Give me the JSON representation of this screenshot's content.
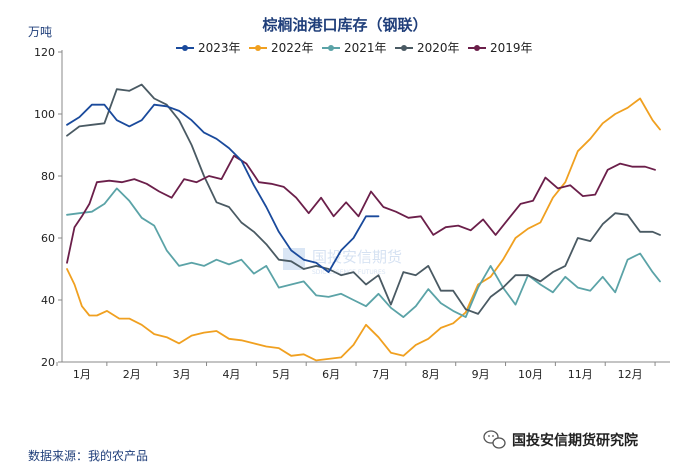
{
  "chart_data": {
    "type": "line",
    "title": "棕榈油港口库存（钢联）",
    "ylabel": "万吨",
    "xlabel": "",
    "ylim": [
      20,
      120
    ],
    "yticks": [
      20,
      40,
      60,
      80,
      100,
      120
    ],
    "xlim": [
      0.6,
      12.8
    ],
    "categories": [
      "1月",
      "2月",
      "3月",
      "4月",
      "5月",
      "6月",
      "7月",
      "8月",
      "9月",
      "10月",
      "11月",
      "12月"
    ],
    "legend_position": "top",
    "grid": false,
    "series": [
      {
        "name": "2023年",
        "color": "#1a4a9c",
        "x": [
          0.7,
          0.95,
          1.2,
          1.45,
          1.7,
          1.95,
          2.2,
          2.45,
          2.7,
          2.95,
          3.2,
          3.45,
          3.7,
          3.95,
          4.2,
          4.45,
          4.7,
          4.95,
          5.2,
          5.45,
          5.7,
          5.95,
          6.2,
          6.45,
          6.7,
          6.95
        ],
        "y": [
          96.5,
          99,
          103,
          103,
          98,
          96,
          98,
          103,
          102.5,
          101,
          98,
          94,
          92,
          89,
          85,
          77,
          70,
          62,
          56,
          53,
          52,
          49,
          56,
          60,
          67,
          67
        ]
      },
      {
        "name": "2022年",
        "color": "#f0a020",
        "x": [
          0.7,
          0.85,
          1.0,
          1.15,
          1.3,
          1.5,
          1.75,
          1.95,
          2.2,
          2.45,
          2.7,
          2.95,
          3.2,
          3.45,
          3.7,
          3.95,
          4.2,
          4.45,
          4.7,
          4.95,
          5.2,
          5.45,
          5.7,
          5.95,
          6.2,
          6.45,
          6.7,
          6.95,
          7.2,
          7.45,
          7.7,
          7.95,
          8.2,
          8.45,
          8.7,
          8.95,
          9.2,
          9.45,
          9.7,
          9.95,
          10.2,
          10.45,
          10.7,
          10.95,
          11.2,
          11.45,
          11.7,
          11.95,
          12.2,
          12.45,
          12.6
        ],
        "y": [
          50,
          45,
          38,
          35,
          35,
          36.5,
          34,
          34,
          32,
          29,
          28,
          26,
          28.5,
          29.5,
          30,
          27.5,
          27,
          26,
          25,
          24.5,
          22,
          22.5,
          20.5,
          21,
          21.5,
          25.5,
          32,
          28,
          23,
          22,
          25.5,
          27.5,
          31,
          32.5,
          36,
          45,
          47.5,
          53,
          60,
          63,
          65,
          73,
          78,
          88,
          92,
          97,
          100,
          102,
          105,
          98,
          95
        ]
      },
      {
        "name": "2021年",
        "color": "#5ba3a7",
        "x": [
          0.7,
          0.95,
          1.2,
          1.45,
          1.7,
          1.95,
          2.2,
          2.45,
          2.7,
          2.95,
          3.2,
          3.45,
          3.7,
          3.95,
          4.2,
          4.45,
          4.7,
          4.95,
          5.2,
          5.45,
          5.7,
          5.95,
          6.2,
          6.45,
          6.7,
          6.95,
          7.2,
          7.45,
          7.7,
          7.95,
          8.2,
          8.45,
          8.7,
          8.95,
          9.2,
          9.45,
          9.7,
          9.95,
          10.2,
          10.45,
          10.7,
          10.95,
          11.2,
          11.45,
          11.7,
          11.95,
          12.2,
          12.45,
          12.6
        ],
        "y": [
          67.5,
          68,
          68.5,
          71,
          76,
          72,
          66.5,
          64,
          56,
          51,
          52,
          51,
          53,
          51.5,
          53,
          48.5,
          51,
          44,
          45,
          46,
          41.5,
          41,
          42,
          40,
          38,
          42,
          37.5,
          34.5,
          38,
          43.5,
          39,
          36.5,
          34.5,
          44,
          51,
          44,
          38.5,
          48,
          45,
          42.5,
          47.5,
          44,
          43,
          47.5,
          42.5,
          53,
          55,
          49,
          46
        ]
      },
      {
        "name": "2020年",
        "color": "#4a5a63",
        "x": [
          0.7,
          0.95,
          1.2,
          1.45,
          1.7,
          1.95,
          2.2,
          2.45,
          2.7,
          2.95,
          3.2,
          3.45,
          3.7,
          3.95,
          4.2,
          4.45,
          4.7,
          4.95,
          5.2,
          5.45,
          5.7,
          5.95,
          6.2,
          6.45,
          6.7,
          6.95,
          7.2,
          7.45,
          7.7,
          7.95,
          8.2,
          8.45,
          8.7,
          8.95,
          9.2,
          9.45,
          9.7,
          9.95,
          10.2,
          10.45,
          10.7,
          10.95,
          11.2,
          11.45,
          11.7,
          11.95,
          12.2,
          12.45,
          12.6
        ],
        "y": [
          93,
          96,
          96.5,
          97,
          108,
          107.5,
          109.5,
          105,
          103,
          98,
          90,
          80,
          71.5,
          70,
          65,
          62,
          58,
          53,
          52.5,
          50,
          51,
          50,
          48,
          49,
          45,
          48,
          38.5,
          49,
          48,
          51,
          43,
          43,
          37,
          35.5,
          41,
          44,
          48,
          48,
          46,
          49,
          51,
          60,
          59,
          64.5,
          68,
          67.5,
          62,
          62,
          61
        ]
      },
      {
        "name": "2019年",
        "color": "#6b1f4a",
        "x": [
          0.7,
          0.85,
          1.0,
          1.15,
          1.3,
          1.55,
          1.8,
          2.05,
          2.3,
          2.55,
          2.8,
          3.05,
          3.3,
          3.55,
          3.8,
          4.05,
          4.3,
          4.55,
          4.8,
          5.05,
          5.3,
          5.55,
          5.8,
          6.05,
          6.3,
          6.55,
          6.8,
          7.05,
          7.3,
          7.55,
          7.8,
          8.05,
          8.3,
          8.55,
          8.8,
          9.05,
          9.3,
          9.55,
          9.8,
          10.05,
          10.3,
          10.55,
          10.8,
          11.05,
          11.3,
          11.55,
          11.8,
          12.05,
          12.3,
          12.5
        ],
        "y": [
          52,
          63.5,
          67,
          71,
          78,
          78.5,
          78,
          79,
          77.5,
          75,
          73,
          79,
          78,
          80,
          79,
          86.5,
          84,
          78,
          77.5,
          76.5,
          73,
          68,
          73,
          67,
          71.5,
          67,
          75,
          70,
          68.5,
          66.5,
          67,
          61,
          63.5,
          64,
          62.5,
          66,
          61,
          66,
          71,
          72,
          79.5,
          76,
          77,
          73.5,
          74,
          82,
          84,
          83,
          83,
          82
        ]
      }
    ]
  },
  "footer": {
    "source": "数据来源：我的农产品",
    "brand": "国投安信期货研究院"
  },
  "watermark": {
    "text": "国投安信期货",
    "subtext": "SDIC ESSENCE FUTURES"
  }
}
